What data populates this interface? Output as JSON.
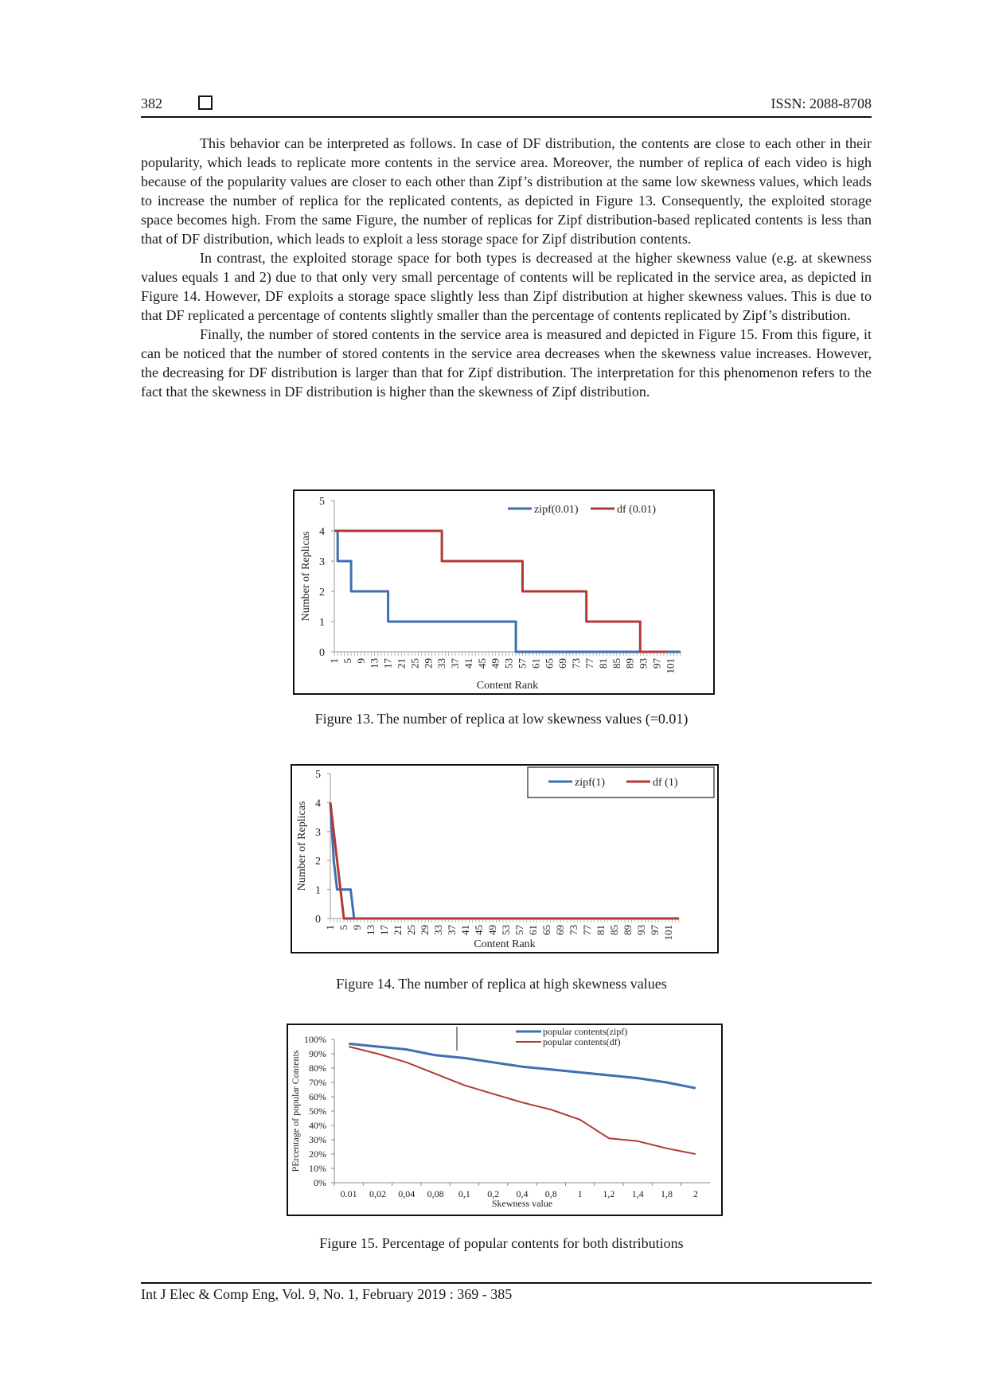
{
  "header": {
    "page_number": "382",
    "issn": "ISSN: 2088-8708"
  },
  "paragraphs": [
    "This behavior can be interpreted as follows. In case of DF distribution, the contents are close to each other in their popularity, which leads to replicate more contents in the service area. Moreover, the number of replica of each video is high because of the popularity values are closer to each other than Zipf’s distribution at the same low skewness values, which leads to increase the number of replica for the replicated contents, as depicted in Figure 13. Consequently, the exploited storage space becomes high. From the same Figure, the number of replicas for Zipf distribution-based replicated contents is less than that of DF distribution, which leads to exploit a less storage space for Zipf distribution contents.",
    "In contrast, the exploited storage space for both types is decreased at the higher skewness value (e.g. at skewness values equals 1 and 2) due to that only very small percentage of contents will be replicated in the service area, as depicted in Figure 14. However, DF exploits a storage space slightly less than Zipf distribution at higher skewness values. This is due to that DF replicated a percentage of contents slightly smaller than the percentage of contents replicated by Zipf’s distribution.",
    "Finally, the number of stored contents in the service area is measured and depicted in Figure 15. From this figure, it can be noticed that the number of stored contents in the service area decreases when the skewness value increases. However, the decreasing for DF distribution is larger than that for Zipf distribution. The interpretation for this phenomenon refers to the fact that the skewness in DF distribution is higher than the skewness of Zipf distribution."
  ],
  "figures": [
    {
      "caption": "Figure 13. The number of replica at low skewness values (=0.01)"
    },
    {
      "caption": "Figure 14. The number of replica at high skewness values"
    },
    {
      "caption": "Figure 15. Percentage of popular contents for both distributions"
    }
  ],
  "footer": {
    "text": "Int J Elec & Comp Eng, Vol. 9, No. 1, February 2019 :  369 - 385"
  },
  "chart_data": [
    {
      "type": "line",
      "xlabel": "Content Rank",
      "ylabel": "Number of Replicas",
      "x_tick_labels": [
        "1",
        "5",
        "9",
        "13",
        "17",
        "21",
        "25",
        "29",
        "33",
        "37",
        "41",
        "45",
        "49",
        "53",
        "57",
        "61",
        "65",
        "69",
        "73",
        "77",
        "81",
        "85",
        "89",
        "93",
        "97",
        "101"
      ],
      "xlim": [
        1,
        104
      ],
      "ylim": [
        0,
        5
      ],
      "y_ticks": [
        "0",
        "1",
        "2",
        "3",
        "4",
        "5"
      ],
      "legend_position": "top-right",
      "series": [
        {
          "name": "zipf(0.01)",
          "color": "#3f6fb0",
          "steps": [
            {
              "from": 1,
              "to": 2,
              "y": 4
            },
            {
              "from": 2,
              "to": 6,
              "y": 3
            },
            {
              "from": 6,
              "to": 17,
              "y": 2
            },
            {
              "from": 17,
              "to": 55,
              "y": 1
            },
            {
              "from": 55,
              "to": 104,
              "y": 0
            }
          ]
        },
        {
          "name": "df (0.01)",
          "color": "#b03a35",
          "steps": [
            {
              "from": 1,
              "to": 33,
              "y": 4
            },
            {
              "from": 33,
              "to": 57,
              "y": 3
            },
            {
              "from": 57,
              "to": 76,
              "y": 2
            },
            {
              "from": 76,
              "to": 92,
              "y": 1
            },
            {
              "from": 92,
              "to": 100,
              "y": 0
            }
          ]
        }
      ]
    },
    {
      "type": "line",
      "xlabel": "Content Rank",
      "ylabel": "Number of Replicas",
      "x_tick_labels": [
        "1",
        "5",
        "9",
        "13",
        "17",
        "21",
        "25",
        "29",
        "33",
        "37",
        "41",
        "45",
        "49",
        "53",
        "57",
        "61",
        "65",
        "69",
        "73",
        "77",
        "81",
        "85",
        "89",
        "93",
        "97",
        "101"
      ],
      "xlim": [
        1,
        104
      ],
      "ylim": [
        0,
        5
      ],
      "y_ticks": [
        "0",
        "1",
        "2",
        "3",
        "4",
        "5"
      ],
      "legend_position": "top-right",
      "series": [
        {
          "name": "zipf(1)",
          "color": "#3f6fb0",
          "points": [
            [
              1,
              4
            ],
            [
              2,
              2
            ],
            [
              3,
              1
            ],
            [
              7,
              1
            ],
            [
              8,
              0
            ],
            [
              104,
              0
            ]
          ]
        },
        {
          "name": "df (1)",
          "color": "#b03a35",
          "points": [
            [
              1,
              4
            ],
            [
              2,
              3
            ],
            [
              3,
              2
            ],
            [
              4,
              1
            ],
            [
              5,
              0
            ],
            [
              104,
              0
            ]
          ]
        }
      ]
    },
    {
      "type": "line",
      "xlabel": "Skewness value",
      "ylabel": "PErcentage of popular Contents",
      "categories": [
        "0.01",
        "0,02",
        "0,04",
        "0,08",
        "0,1",
        "0,2",
        "0,4",
        "0,8",
        "1",
        "1,2",
        "1,4",
        "1,8",
        "2"
      ],
      "ylim": [
        0,
        100
      ],
      "y_ticks": [
        "0%",
        "10%",
        "20%",
        "30%",
        "40%",
        "50%",
        "60%",
        "70%",
        "80%",
        "90%",
        "100%"
      ],
      "legend_position": "top-right",
      "series": [
        {
          "name": "popular contents(zipf)",
          "color": "#3f6fb0",
          "values": [
            97,
            95,
            93,
            89,
            87,
            84,
            81,
            79,
            77,
            75,
            73,
            70,
            66
          ]
        },
        {
          "name": "popular contents(df)",
          "color": "#b03a35",
          "values": [
            95,
            90,
            84,
            76,
            68,
            62,
            56,
            51,
            44,
            31,
            29,
            24,
            20
          ]
        }
      ]
    }
  ]
}
